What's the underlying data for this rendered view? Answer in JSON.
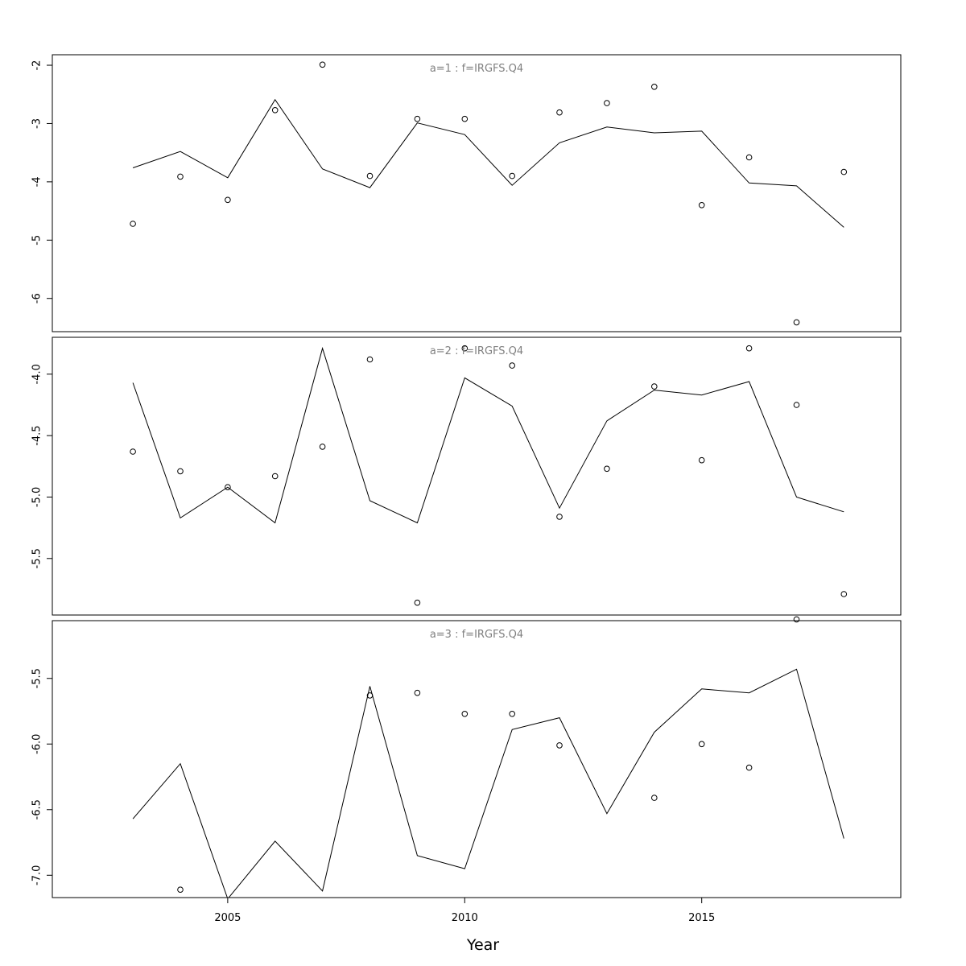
{
  "chart_data": {
    "type": "line",
    "xlabel": "Year",
    "ylabel": "",
    "xlim": [
      2001.3,
      2019.2
    ],
    "x_ticks": [
      2005,
      2010,
      2015
    ],
    "x_tick_labels": [
      "2005",
      "2010",
      "2015"
    ],
    "x": [
      2003,
      2004,
      2005,
      2006,
      2007,
      2008,
      2009,
      2010,
      2011,
      2012,
      2013,
      2014,
      2015,
      2016,
      2017,
      2018
    ],
    "panels": [
      {
        "title": "a=1  :  f=IRGFS.Q4",
        "ylim": [
          -6.57,
          -1.82
        ],
        "y_ticks": [
          -6,
          -5,
          -4,
          -3,
          -2
        ],
        "y_tick_labels": [
          "-6",
          "-5",
          "-4",
          "-3",
          "-2"
        ],
        "series": [
          {
            "kind": "line",
            "values": [
              -3.76,
              -3.48,
              -3.93,
              -2.59,
              -3.78,
              -4.1,
              -2.99,
              -3.19,
              -4.06,
              -3.33,
              -3.06,
              -3.16,
              -3.13,
              -4.02,
              -4.07,
              -4.78
            ]
          },
          {
            "kind": "points",
            "values": [
              -4.72,
              -3.91,
              -4.31,
              -2.77,
              -1.99,
              -3.9,
              -2.92,
              -2.92,
              -3.9,
              -2.81,
              -2.65,
              -2.37,
              -4.4,
              -3.58,
              -6.41,
              -3.83
            ]
          }
        ]
      },
      {
        "title": "a=2  :  f=IRGFS.Q4",
        "ylim": [
          -5.96,
          -3.7
        ],
        "y_ticks": [
          -5.5,
          -5.0,
          -4.5,
          -4.0
        ],
        "y_tick_labels": [
          "-5.5",
          "-5.0",
          "-4.5",
          "-4.0"
        ],
        "series": [
          {
            "kind": "line",
            "values": [
              -4.07,
              -5.17,
              -4.92,
              -5.21,
              -3.79,
              -5.03,
              -5.21,
              -4.03,
              -4.26,
              -5.09,
              -4.38,
              -4.13,
              -4.17,
              -4.06,
              -5.0,
              -5.12
            ]
          },
          {
            "kind": "points",
            "values": [
              -4.63,
              -4.79,
              -4.92,
              -4.83,
              -4.59,
              -3.88,
              -5.86,
              -3.79,
              -3.93,
              -5.16,
              -4.77,
              -4.1,
              -4.7,
              -3.79,
              -4.25,
              -5.79
            ]
          }
        ]
      },
      {
        "title": "a=3  :  f=IRGFS.Q4",
        "ylim": [
          -7.17,
          -5.06
        ],
        "y_ticks": [
          -7.0,
          -6.5,
          -6.0,
          -5.5
        ],
        "y_tick_labels": [
          "-7.0",
          "-6.5",
          "-6.0",
          "-5.5"
        ],
        "series": [
          {
            "kind": "line",
            "values": [
              -6.57,
              -6.15,
              -7.18,
              -6.74,
              -7.12,
              -5.56,
              -6.85,
              -6.95,
              -5.89,
              -5.8,
              -6.53,
              -5.91,
              -5.58,
              -5.61,
              -5.43,
              -6.72
            ]
          },
          {
            "kind": "points",
            "values": [
              null,
              -7.11,
              null,
              null,
              null,
              -5.63,
              -5.61,
              -5.77,
              -5.77,
              -6.01,
              null,
              -6.41,
              -6.0,
              -6.18,
              -5.05,
              null
            ]
          }
        ]
      }
    ]
  }
}
